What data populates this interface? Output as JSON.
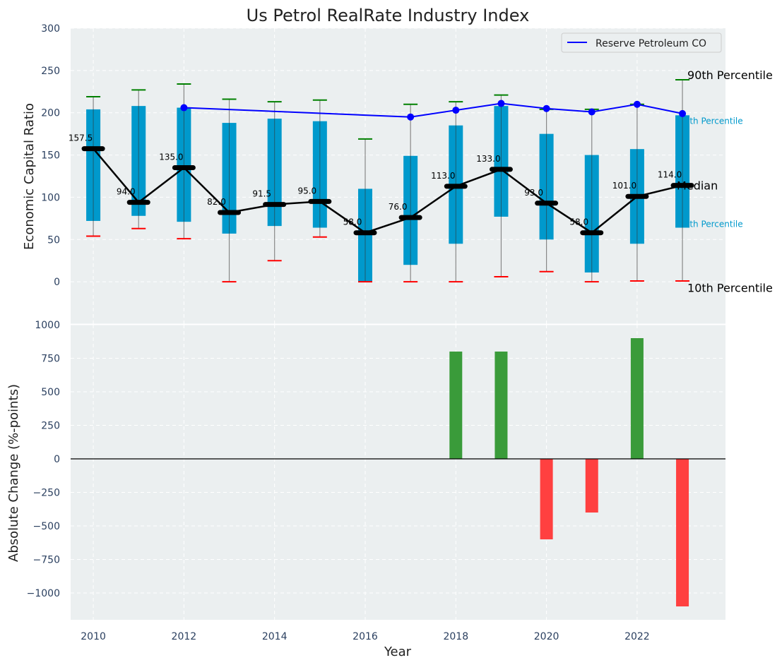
{
  "chart_data": [
    {
      "type": "box",
      "title": "Us Petrol RealRate Industry Index",
      "xlabel": "",
      "ylabel": "Economic Capital Ratio",
      "ylim": [
        -50,
        300
      ],
      "xlim": [
        2009.5,
        2023.95
      ],
      "yticks": [
        0,
        50,
        100,
        150,
        200,
        250,
        300
      ],
      "grid": true,
      "years": [
        2010,
        2011,
        2012,
        2013,
        2014,
        2015,
        2016,
        2017,
        2018,
        2019,
        2020,
        2021,
        2022,
        2023
      ],
      "p10": [
        54,
        63,
        51,
        0,
        25,
        53,
        0,
        0,
        0,
        6,
        12,
        0,
        1,
        1
      ],
      "q1": [
        72,
        78,
        71,
        57,
        66,
        64,
        0,
        20,
        45,
        77,
        50,
        11,
        45,
        64
      ],
      "median": [
        157.5,
        94.0,
        135.0,
        82.0,
        91.5,
        95.0,
        58.0,
        76.0,
        113.0,
        133.0,
        93.0,
        58.0,
        101.0,
        114.0
      ],
      "median_labels": [
        "157.5",
        "94.0",
        "135.0",
        "82.0",
        "91.5",
        "95.0",
        "58.0",
        "76.0",
        "113.0",
        "133.0",
        "93.0",
        "58.0",
        "101.0",
        "114.0"
      ],
      "q3": [
        204,
        208,
        206,
        188,
        193,
        190,
        110,
        149,
        185,
        208,
        175,
        150,
        157,
        197
      ],
      "p90": [
        219,
        227,
        234,
        216,
        213,
        215,
        169,
        210,
        213,
        221,
        204,
        204,
        210,
        239
      ],
      "line_series": {
        "name": "Reserve Petroleum CO",
        "x": [
          2012,
          2017,
          2018,
          2019,
          2020,
          2021,
          2022,
          2023
        ],
        "y": [
          206,
          195,
          203,
          211,
          205,
          201,
          210,
          199
        ],
        "color": "#0000FF"
      },
      "legend": "top-right",
      "annotations": {
        "p90": "90th Percentile",
        "q3": "75th Percentile",
        "median": "Median",
        "q1": "25th Percentile",
        "p10": "10th Percentile"
      },
      "colors": {
        "box": "#0099CC",
        "upper_cap": "#008000",
        "lower_cap": "#FF0000",
        "median": "#000000",
        "background": "#EBEFF0"
      }
    },
    {
      "type": "bar",
      "xlabel": "Year",
      "ylabel": "Absolute Change (%-points)",
      "ylim": [
        -1200,
        1000
      ],
      "yticks": [
        -1000,
        -750,
        -500,
        -250,
        0,
        250,
        500,
        750,
        1000
      ],
      "xticks": [
        2010,
        2012,
        2014,
        2016,
        2018,
        2020,
        2022
      ],
      "x": [
        2018,
        2019,
        2020,
        2021,
        2022,
        2023
      ],
      "values": [
        800,
        800,
        -600,
        -400,
        900,
        -1100
      ],
      "colors": {
        "positive": "#3A9B3A",
        "negative": "#FF4040"
      }
    }
  ]
}
